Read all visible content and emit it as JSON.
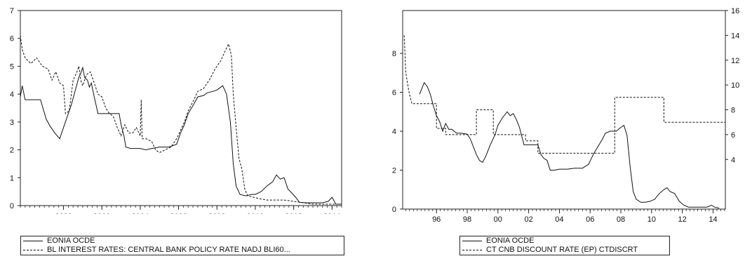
{
  "chart_data": [
    {
      "type": "line",
      "y_axis": {
        "range": [
          0,
          7
        ],
        "ticks": [
          "0",
          "1",
          "2",
          "3",
          "4",
          "5",
          "6",
          "7"
        ],
        "side": "left"
      },
      "x_axis": {
        "range": [
          1997.75,
          2014.5
        ],
        "ticks": [
          "2000",
          "2002",
          "2004",
          "2006",
          "2008",
          "2010",
          "2012",
          "2014"
        ],
        "tick_values": [
          2000,
          2002,
          2004,
          2006,
          2008,
          2010,
          2012,
          2014
        ]
      },
      "grid": false,
      "legend_position": "bottom",
      "series": [
        {
          "name": "EONIA OCDE",
          "style": "solid",
          "points": [
            [
              1997.75,
              3.9
            ],
            [
              1997.85,
              4.3
            ],
            [
              1998.0,
              3.8
            ],
            [
              1998.8,
              3.8
            ],
            [
              1999.1,
              3.1
            ],
            [
              1999.3,
              2.85
            ],
            [
              1999.55,
              2.6
            ],
            [
              1999.8,
              2.4
            ],
            [
              2000.0,
              2.8
            ],
            [
              2000.2,
              3.2
            ],
            [
              2000.4,
              3.6
            ],
            [
              2000.6,
              4.1
            ],
            [
              2000.8,
              4.6
            ],
            [
              2000.9,
              4.75
            ],
            [
              2001.0,
              4.95
            ],
            [
              2001.1,
              4.6
            ],
            [
              2001.25,
              4.5
            ],
            [
              2001.35,
              4.25
            ],
            [
              2001.45,
              4.4
            ],
            [
              2001.6,
              3.9
            ],
            [
              2001.8,
              3.3
            ],
            [
              2002.0,
              3.3
            ],
            [
              2002.9,
              3.3
            ],
            [
              2003.0,
              2.9
            ],
            [
              2003.15,
              2.5
            ],
            [
              2003.25,
              2.1
            ],
            [
              2003.5,
              2.05
            ],
            [
              2004.0,
              2.05
            ],
            [
              2004.3,
              2.0
            ],
            [
              2004.6,
              2.05
            ],
            [
              2005.0,
              2.1
            ],
            [
              2005.5,
              2.1
            ],
            [
              2005.9,
              2.2
            ],
            [
              2006.1,
              2.6
            ],
            [
              2006.3,
              2.9
            ],
            [
              2006.5,
              3.3
            ],
            [
              2006.8,
              3.65
            ],
            [
              2007.0,
              3.9
            ],
            [
              2007.3,
              3.95
            ],
            [
              2007.5,
              4.05
            ],
            [
              2007.8,
              4.1
            ],
            [
              2008.0,
              4.15
            ],
            [
              2008.3,
              4.3
            ],
            [
              2008.5,
              4.0
            ],
            [
              2008.7,
              3.0
            ],
            [
              2008.85,
              1.5
            ],
            [
              2009.0,
              0.7
            ],
            [
              2009.2,
              0.4
            ],
            [
              2009.5,
              0.35
            ],
            [
              2009.8,
              0.4
            ],
            [
              2010.0,
              0.4
            ],
            [
              2010.3,
              0.5
            ],
            [
              2010.6,
              0.7
            ],
            [
              2010.9,
              0.85
            ],
            [
              2011.1,
              1.1
            ],
            [
              2011.3,
              0.95
            ],
            [
              2011.5,
              1.0
            ],
            [
              2011.7,
              0.6
            ],
            [
              2011.9,
              0.45
            ],
            [
              2012.1,
              0.3
            ],
            [
              2012.3,
              0.12
            ],
            [
              2012.6,
              0.1
            ],
            [
              2013.0,
              0.1
            ],
            [
              2013.5,
              0.1
            ],
            [
              2013.8,
              0.15
            ],
            [
              2014.0,
              0.3
            ],
            [
              2014.2,
              0.05
            ],
            [
              2014.5,
              0.05
            ]
          ]
        },
        {
          "name": "BL INTEREST RATES: CENTRAL BANK POLICY RATE NADJ BLI60...",
          "style": "dashed",
          "points": [
            [
              1997.75,
              6.1
            ],
            [
              1997.85,
              5.6
            ],
            [
              1998.0,
              5.3
            ],
            [
              1998.3,
              5.1
            ],
            [
              1998.6,
              5.3
            ],
            [
              1998.9,
              5.0
            ],
            [
              1999.2,
              4.9
            ],
            [
              1999.4,
              4.5
            ],
            [
              1999.6,
              4.8
            ],
            [
              1999.8,
              4.4
            ],
            [
              2000.0,
              4.3
            ],
            [
              2000.1,
              3.3
            ],
            [
              2000.3,
              3.4
            ],
            [
              2000.5,
              4.5
            ],
            [
              2000.7,
              4.8
            ],
            [
              2000.8,
              5.0
            ],
            [
              2000.9,
              4.5
            ],
            [
              2001.0,
              4.3
            ],
            [
              2001.2,
              4.7
            ],
            [
              2001.4,
              4.8
            ],
            [
              2001.6,
              4.4
            ],
            [
              2001.8,
              4.0
            ],
            [
              2002.0,
              3.9
            ],
            [
              2002.2,
              3.5
            ],
            [
              2002.4,
              3.3
            ],
            [
              2002.6,
              3.2
            ],
            [
              2002.8,
              2.8
            ],
            [
              2003.0,
              2.5
            ],
            [
              2003.2,
              2.9
            ],
            [
              2003.4,
              2.6
            ],
            [
              2003.6,
              2.6
            ],
            [
              2003.8,
              2.8
            ],
            [
              2004.0,
              2.5
            ],
            [
              2004.05,
              3.8
            ],
            [
              2004.1,
              2.4
            ],
            [
              2004.3,
              2.4
            ],
            [
              2004.6,
              2.3
            ],
            [
              2004.8,
              2.0
            ],
            [
              2005.0,
              1.9
            ],
            [
              2005.3,
              2.0
            ],
            [
              2005.6,
              2.1
            ],
            [
              2005.9,
              2.4
            ],
            [
              2006.1,
              2.7
            ],
            [
              2006.3,
              3.0
            ],
            [
              2006.5,
              3.4
            ],
            [
              2006.8,
              3.8
            ],
            [
              2007.0,
              4.1
            ],
            [
              2007.3,
              4.2
            ],
            [
              2007.6,
              4.5
            ],
            [
              2007.9,
              4.9
            ],
            [
              2008.2,
              5.2
            ],
            [
              2008.4,
              5.5
            ],
            [
              2008.6,
              5.8
            ],
            [
              2008.75,
              5.4
            ],
            [
              2008.85,
              4.0
            ],
            [
              2009.0,
              2.8
            ],
            [
              2009.15,
              1.7
            ],
            [
              2009.3,
              1.3
            ],
            [
              2009.45,
              0.6
            ],
            [
              2009.6,
              0.35
            ],
            [
              2009.9,
              0.3
            ],
            [
              2010.2,
              0.25
            ],
            [
              2010.6,
              0.2
            ],
            [
              2011.0,
              0.2
            ],
            [
              2011.5,
              0.2
            ],
            [
              2012.0,
              0.15
            ],
            [
              2012.5,
              0.1
            ],
            [
              2013.0,
              0.05
            ],
            [
              2014.0,
              0.05
            ],
            [
              2014.5,
              0.05
            ]
          ]
        }
      ]
    },
    {
      "type": "line",
      "y_axis_left": {
        "range": [
          0,
          10.2
        ],
        "ticks": [
          "0",
          "2",
          "4",
          "6",
          "8"
        ],
        "tick_values": [
          0,
          2,
          4,
          6,
          8
        ]
      },
      "y_axis_right": {
        "range": [
          0,
          16
        ],
        "ticks": [
          "4",
          "6",
          "8",
          "10",
          "12",
          "14",
          "16"
        ],
        "tick_values": [
          4,
          6,
          8,
          10,
          12,
          14,
          16
        ]
      },
      "x_axis": {
        "range": [
          1993.8,
          2014.8
        ],
        "ticks": [
          "96",
          "98",
          "00",
          "02",
          "04",
          "06",
          "08",
          "10",
          "12",
          "14"
        ],
        "tick_values": [
          1996,
          1998,
          2000,
          2002,
          2004,
          2006,
          2008,
          2010,
          2012,
          2014
        ]
      },
      "grid": false,
      "legend_position": "bottom",
      "series": [
        {
          "name": "EONIA OCDE",
          "style": "solid",
          "axis": "left",
          "points": [
            [
              1994.9,
              5.9
            ],
            [
              1995.0,
              6.1
            ],
            [
              1995.2,
              6.5
            ],
            [
              1995.4,
              6.3
            ],
            [
              1995.6,
              5.9
            ],
            [
              1995.8,
              5.3
            ],
            [
              1996.0,
              4.8
            ],
            [
              1996.2,
              4.5
            ],
            [
              1996.4,
              4.0
            ],
            [
              1996.6,
              4.4
            ],
            [
              1996.8,
              4.1
            ],
            [
              1997.0,
              4.1
            ],
            [
              1997.3,
              3.9
            ],
            [
              1997.6,
              3.9
            ],
            [
              1998.0,
              3.85
            ],
            [
              1998.2,
              3.6
            ],
            [
              1998.4,
              3.2
            ],
            [
              1998.6,
              2.8
            ],
            [
              1998.8,
              2.5
            ],
            [
              1999.0,
              2.4
            ],
            [
              1999.2,
              2.7
            ],
            [
              1999.5,
              3.3
            ],
            [
              1999.8,
              3.8
            ],
            [
              2000.0,
              4.3
            ],
            [
              2000.3,
              4.7
            ],
            [
              2000.6,
              5.0
            ],
            [
              2000.8,
              4.8
            ],
            [
              2001.0,
              4.9
            ],
            [
              2001.2,
              4.6
            ],
            [
              2001.4,
              4.2
            ],
            [
              2001.7,
              3.3
            ],
            [
              2002.0,
              3.3
            ],
            [
              2002.6,
              3.3
            ],
            [
              2002.8,
              2.8
            ],
            [
              2003.0,
              2.6
            ],
            [
              2003.2,
              2.5
            ],
            [
              2003.4,
              2.0
            ],
            [
              2003.7,
              2.0
            ],
            [
              2004.0,
              2.05
            ],
            [
              2004.5,
              2.05
            ],
            [
              2005.0,
              2.1
            ],
            [
              2005.5,
              2.1
            ],
            [
              2005.9,
              2.3
            ],
            [
              2006.2,
              2.8
            ],
            [
              2006.5,
              3.2
            ],
            [
              2006.8,
              3.6
            ],
            [
              2007.0,
              3.9
            ],
            [
              2007.3,
              4.0
            ],
            [
              2007.7,
              4.0
            ],
            [
              2008.0,
              4.2
            ],
            [
              2008.2,
              4.3
            ],
            [
              2008.4,
              3.8
            ],
            [
              2008.6,
              2.2
            ],
            [
              2008.8,
              0.9
            ],
            [
              2009.0,
              0.5
            ],
            [
              2009.3,
              0.35
            ],
            [
              2009.6,
              0.35
            ],
            [
              2009.9,
              0.4
            ],
            [
              2010.2,
              0.5
            ],
            [
              2010.5,
              0.8
            ],
            [
              2010.8,
              1.0
            ],
            [
              2011.0,
              1.1
            ],
            [
              2011.2,
              0.9
            ],
            [
              2011.5,
              0.8
            ],
            [
              2011.8,
              0.4
            ],
            [
              2012.1,
              0.2
            ],
            [
              2012.4,
              0.1
            ],
            [
              2013.0,
              0.1
            ],
            [
              2013.6,
              0.1
            ],
            [
              2013.9,
              0.2
            ],
            [
              2014.1,
              0.1
            ],
            [
              2014.4,
              0.05
            ]
          ]
        },
        {
          "name": "CT CNB DISCOUNT RATE (EP) CTDISCRT",
          "style": "dashed",
          "axis": "right",
          "points": [
            [
              1993.9,
              14.0
            ],
            [
              1994.0,
              11.0
            ],
            [
              1994.2,
              9.5
            ],
            [
              1994.4,
              8.5
            ],
            [
              1996.0,
              8.5
            ],
            [
              1996.0,
              6.5
            ],
            [
              1996.6,
              6.5
            ],
            [
              1996.6,
              6.0
            ],
            [
              1998.6,
              6.0
            ],
            [
              1998.6,
              8.0
            ],
            [
              1999.7,
              8.0
            ],
            [
              1999.7,
              6.0
            ],
            [
              2001.8,
              6.0
            ],
            [
              2001.8,
              5.5
            ],
            [
              2002.6,
              5.5
            ],
            [
              2002.6,
              4.5
            ],
            [
              2007.6,
              4.5
            ],
            [
              2007.6,
              9.0
            ],
            [
              2010.8,
              9.0
            ],
            [
              2010.8,
              7.0
            ],
            [
              2014.8,
              7.0
            ]
          ]
        }
      ]
    }
  ]
}
